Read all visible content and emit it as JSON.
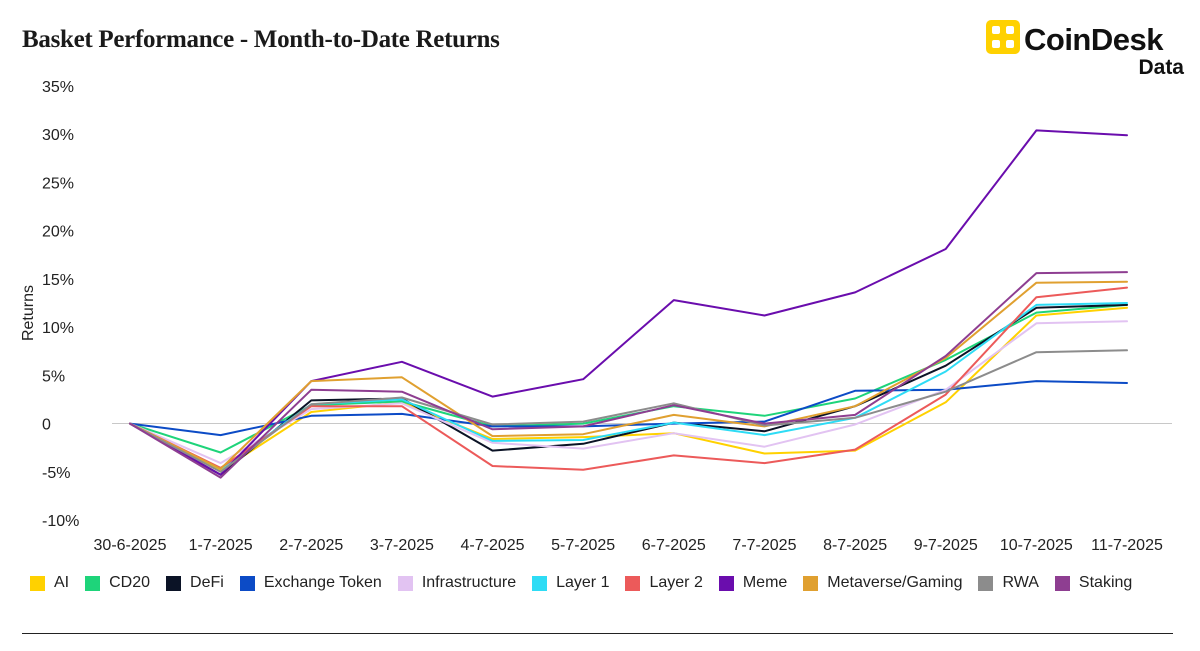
{
  "header": {
    "title": "Basket Performance - Month-to-Date Returns"
  },
  "logo": {
    "brand": "CoinDesk",
    "sub": "Data",
    "accent": "#FFD100"
  },
  "chart_data": {
    "type": "line",
    "title": "Basket Performance - Month-to-Date Returns",
    "xlabel": "",
    "ylabel": "Returns",
    "ylim": [
      -10,
      35
    ],
    "y_ticks": [
      35,
      30,
      25,
      20,
      15,
      10,
      5,
      0,
      -5,
      -10
    ],
    "y_tick_labels": [
      "35%",
      "30%",
      "25%",
      "20%",
      "15%",
      "10%",
      "5%",
      "0",
      "-5%",
      "-10%"
    ],
    "categories": [
      "30-6-2025",
      "1-7-2025",
      "2-7-2025",
      "3-7-2025",
      "4-7-2025",
      "5-7-2025",
      "6-7-2025",
      "7-7-2025",
      "8-7-2025",
      "9-7-2025",
      "10-7-2025",
      "11-7-2025"
    ],
    "grid": false,
    "zero_line": true,
    "legend_position": "bottom",
    "series": [
      {
        "name": "AI",
        "color": "#FFD100",
        "values": [
          0,
          -4.9,
          1.2,
          2.2,
          -1.6,
          -1.4,
          -1.0,
          -3.1,
          -2.8,
          2.2,
          11.2,
          12.0
        ]
      },
      {
        "name": "CD20",
        "color": "#1ED47A",
        "values": [
          0,
          -3.0,
          1.9,
          2.3,
          -0.3,
          0.0,
          1.8,
          0.8,
          2.6,
          6.6,
          11.5,
          12.3
        ]
      },
      {
        "name": "DeFi",
        "color": "#0B1326",
        "values": [
          0,
          -5.3,
          2.4,
          2.6,
          -2.8,
          -2.1,
          0.1,
          -0.8,
          1.8,
          6.0,
          12.0,
          12.3
        ]
      },
      {
        "name": "Exchange Token",
        "color": "#0C4BC6",
        "values": [
          0,
          -1.2,
          0.8,
          1.0,
          -0.3,
          -0.3,
          0.0,
          0.2,
          3.4,
          3.5,
          4.4,
          4.2
        ]
      },
      {
        "name": "Infrastructure",
        "color": "#E2C3F2",
        "values": [
          0,
          -4.1,
          1.5,
          2.1,
          -2.0,
          -2.6,
          -1.0,
          -2.4,
          -0.1,
          3.5,
          10.4,
          10.6
        ]
      },
      {
        "name": "Layer 1",
        "color": "#2EDCF5",
        "values": [
          0,
          -4.7,
          2.0,
          2.5,
          -1.8,
          -1.7,
          0.1,
          -1.2,
          0.6,
          5.4,
          12.3,
          12.5
        ]
      },
      {
        "name": "Layer 2",
        "color": "#EC5A5A",
        "values": [
          0,
          -4.6,
          1.8,
          1.8,
          -4.4,
          -4.8,
          -3.3,
          -4.1,
          -2.7,
          3.0,
          13.1,
          14.1
        ]
      },
      {
        "name": "Meme",
        "color": "#6A0DAD",
        "values": [
          0,
          -5.3,
          4.4,
          6.4,
          2.8,
          4.6,
          12.8,
          11.2,
          13.6,
          18.1,
          30.4,
          29.9
        ]
      },
      {
        "name": "Metaverse/Gaming",
        "color": "#E0A030",
        "values": [
          0,
          -4.7,
          4.4,
          4.8,
          -1.3,
          -1.1,
          0.9,
          -0.3,
          1.8,
          6.8,
          14.6,
          14.7
        ]
      },
      {
        "name": "RWA",
        "color": "#8C8C8C",
        "values": [
          0,
          -5.0,
          2.0,
          2.7,
          -0.1,
          0.2,
          2.1,
          -0.2,
          0.6,
          3.3,
          7.4,
          7.6
        ]
      },
      {
        "name": "Staking",
        "color": "#8E3E91",
        "values": [
          0,
          -5.6,
          3.5,
          3.3,
          -0.6,
          -0.3,
          1.9,
          0.0,
          0.9,
          7.0,
          15.6,
          15.7
        ]
      }
    ]
  }
}
